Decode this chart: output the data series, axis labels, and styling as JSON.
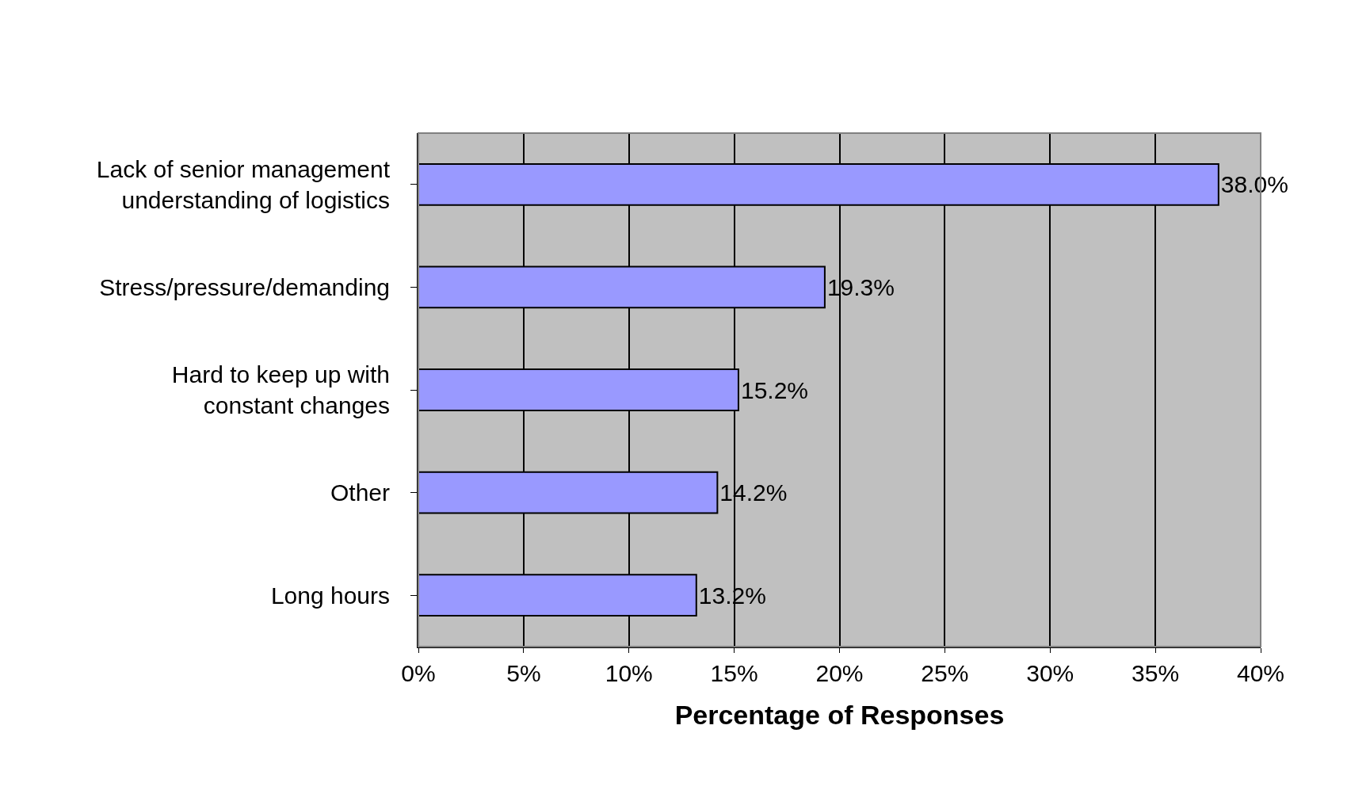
{
  "chart_data": {
    "type": "bar",
    "orientation": "horizontal",
    "xlabel": "Percentage of Responses",
    "categories": [
      "Lack of senior management understanding of logistics",
      "Stress/pressure/demanding",
      "Hard to keep up with constant changes",
      "Other",
      "Long hours"
    ],
    "values": [
      38.0,
      19.3,
      15.2,
      14.2,
      13.2
    ],
    "value_labels": [
      "38.0%",
      "19.3%",
      "15.2%",
      "14.2%",
      "13.2%"
    ],
    "color": "#9999ff",
    "xlim": [
      0,
      40
    ],
    "xticks": [
      {
        "value": 0,
        "label": "0%"
      },
      {
        "value": 5,
        "label": "5%"
      },
      {
        "value": 10,
        "label": "10%"
      },
      {
        "value": 15,
        "label": "15%"
      },
      {
        "value": 20,
        "label": "20%"
      },
      {
        "value": 25,
        "label": "25%"
      },
      {
        "value": 30,
        "label": "30%"
      },
      {
        "value": 35,
        "label": "35%"
      },
      {
        "value": 40,
        "label": "40%"
      }
    ],
    "grid": "x"
  }
}
